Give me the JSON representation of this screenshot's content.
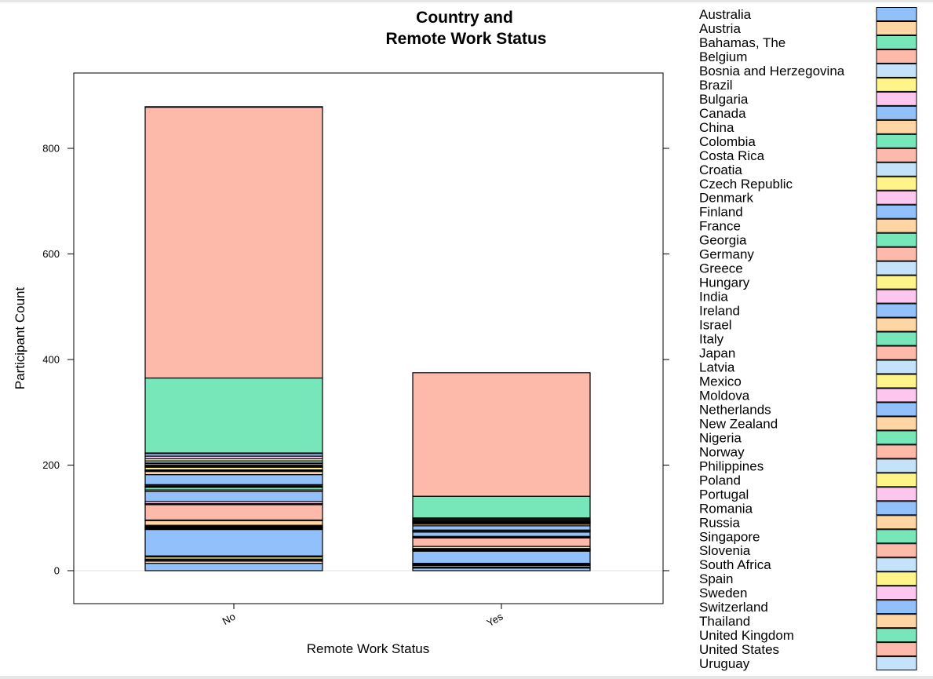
{
  "colors": {
    "palette": [
      "#92c0fb",
      "#ffd5a4",
      "#77e6b9",
      "#fdbaaa",
      "#c5e2fb",
      "#fff489",
      "#fcc6ee"
    ],
    "stroke": "#000000",
    "zero_line": "#e0e0e0",
    "background": "#ffffff"
  },
  "chart_data": {
    "type": "bar",
    "stacked": true,
    "title": [
      "Country and",
      "Remote Work Status"
    ],
    "xlabel": "Remote Work Status",
    "ylabel": "Participant Count",
    "categories": [
      "No",
      "Yes"
    ],
    "ylim": [
      -60,
      940
    ],
    "yticks": [
      0,
      200,
      400,
      600,
      800
    ],
    "ytick_labels": [
      "0",
      "200",
      "400",
      "600",
      "800"
    ],
    "legend_position": "right",
    "grid": false,
    "series": [
      {
        "name": "Australia",
        "values": [
          14,
          5
        ]
      },
      {
        "name": "Austria",
        "values": [
          4,
          2
        ]
      },
      {
        "name": "Bahamas, The",
        "values": [
          1,
          0
        ]
      },
      {
        "name": "Belgium",
        "values": [
          2,
          3
        ]
      },
      {
        "name": "Bosnia and Herzegovina",
        "values": [
          1,
          1
        ]
      },
      {
        "name": "Brazil",
        "values": [
          4,
          2
        ]
      },
      {
        "name": "Bulgaria",
        "values": [
          2,
          1
        ]
      },
      {
        "name": "Canada",
        "values": [
          50,
          23
        ]
      },
      {
        "name": "China",
        "values": [
          1,
          1
        ]
      },
      {
        "name": "Colombia",
        "values": [
          1,
          1
        ]
      },
      {
        "name": "Costa Rica",
        "values": [
          1,
          0
        ]
      },
      {
        "name": "Croatia",
        "values": [
          1,
          1
        ]
      },
      {
        "name": "Czech Republic",
        "values": [
          1,
          0
        ]
      },
      {
        "name": "Denmark",
        "values": [
          1,
          1
        ]
      },
      {
        "name": "Finland",
        "values": [
          2,
          1
        ]
      },
      {
        "name": "France",
        "values": [
          9,
          4
        ]
      },
      {
        "name": "Georgia",
        "values": [
          1,
          0
        ]
      },
      {
        "name": "Germany",
        "values": [
          29,
          16
        ]
      },
      {
        "name": "Greece",
        "values": [
          1,
          1
        ]
      },
      {
        "name": "Hungary",
        "values": [
          1,
          0
        ]
      },
      {
        "name": "India",
        "values": [
          4,
          2
        ]
      },
      {
        "name": "Ireland",
        "values": [
          19,
          8
        ]
      },
      {
        "name": "Israel",
        "values": [
          3,
          1
        ]
      },
      {
        "name": "Italy",
        "values": [
          5,
          2
        ]
      },
      {
        "name": "Japan",
        "values": [
          1,
          0
        ]
      },
      {
        "name": "Latvia",
        "values": [
          1,
          0
        ]
      },
      {
        "name": "Mexico",
        "values": [
          2,
          1
        ]
      },
      {
        "name": "Moldova",
        "values": [
          1,
          0
        ]
      },
      {
        "name": "Netherlands",
        "values": [
          19,
          8
        ]
      },
      {
        "name": "New Zealand",
        "values": [
          6,
          3
        ]
      },
      {
        "name": "Nigeria",
        "values": [
          1,
          0
        ]
      },
      {
        "name": "Norway",
        "values": [
          1,
          0
        ]
      },
      {
        "name": "Philippines",
        "values": [
          1,
          0
        ]
      },
      {
        "name": "Poland",
        "values": [
          5,
          2
        ]
      },
      {
        "name": "Portugal",
        "values": [
          1,
          1
        ]
      },
      {
        "name": "Romania",
        "values": [
          1,
          0
        ]
      },
      {
        "name": "Russia",
        "values": [
          2,
          1
        ]
      },
      {
        "name": "Singapore",
        "values": [
          3,
          1
        ]
      },
      {
        "name": "Slovenia",
        "values": [
          1,
          0
        ]
      },
      {
        "name": "South Africa",
        "values": [
          4,
          2
        ]
      },
      {
        "name": "Spain",
        "values": [
          4,
          1
        ]
      },
      {
        "name": "Sweden",
        "values": [
          5,
          2
        ]
      },
      {
        "name": "Switzerland",
        "values": [
          5,
          2
        ]
      },
      {
        "name": "Thailand",
        "values": [
          1,
          0
        ]
      },
      {
        "name": "United Kingdom",
        "values": [
          142,
          41
        ]
      },
      {
        "name": "United States",
        "values": [
          513,
          234
        ]
      },
      {
        "name": "Uruguay",
        "values": [
          1,
          0
        ]
      }
    ]
  }
}
